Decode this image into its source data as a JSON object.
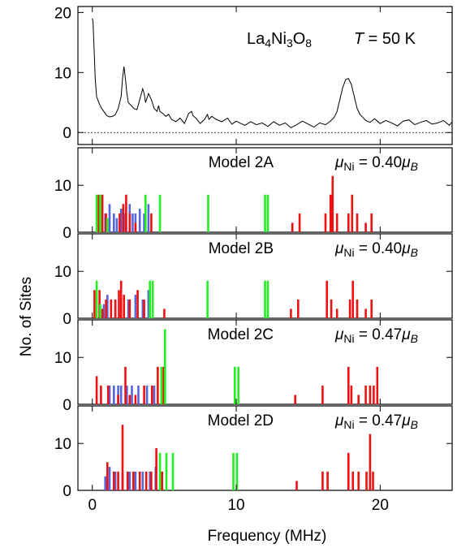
{
  "chart_data": {
    "type": "bar",
    "xlabel": "Frequency (MHz)",
    "ylabel": "No. of Sites",
    "xlim": [
      -1,
      25
    ],
    "xticks": [
      0,
      10,
      20
    ],
    "colors": {
      "red": "#ee1111",
      "green": "#22ee22",
      "blue": "#5566dd"
    },
    "top": {
      "type": "line",
      "label_sample": "La4Ni3O8",
      "label_temp": "T = 50 K",
      "ylim": [
        -2,
        21
      ],
      "yticks": [
        0,
        10,
        20
      ],
      "baseline": 0,
      "x": [
        0.0,
        0.05,
        0.12,
        0.2,
        0.3,
        0.45,
        0.6,
        0.8,
        1.0,
        1.2,
        1.4,
        1.6,
        1.8,
        2.0,
        2.1,
        2.2,
        2.3,
        2.4,
        2.5,
        2.7,
        2.9,
        3.1,
        3.3,
        3.5,
        3.6,
        3.7,
        3.9,
        4.1,
        4.3,
        4.5,
        4.6,
        4.7,
        4.9,
        5.1,
        5.3,
        5.5,
        5.8,
        6.1,
        6.4,
        6.7,
        6.9,
        7.0,
        7.2,
        7.5,
        7.8,
        8.0,
        8.1,
        8.3,
        8.6,
        9.0,
        9.4,
        9.7,
        10.0,
        10.3,
        10.6,
        11.0,
        11.4,
        11.8,
        12.2,
        12.6,
        13.0,
        13.4,
        13.8,
        14.2,
        14.6,
        15.0,
        15.4,
        15.8,
        16.2,
        16.5,
        16.8,
        17.0,
        17.2,
        17.4,
        17.6,
        17.8,
        18.0,
        18.2,
        18.4,
        18.6,
        18.8,
        19.0,
        19.3,
        19.6,
        20.0,
        20.4,
        20.8,
        21.2,
        21.6,
        22.0,
        22.4,
        22.8,
        23.2,
        23.6,
        24.0,
        24.4,
        24.8,
        25.0
      ],
      "y": [
        19,
        18.5,
        14,
        9,
        6,
        5,
        4.2,
        3.5,
        2.8,
        2.6,
        2.7,
        3.0,
        4.0,
        6,
        9,
        11,
        9,
        6.5,
        5,
        4.5,
        4,
        3.8,
        5.5,
        7.3,
        6.5,
        5,
        6.5,
        5.5,
        4,
        3.5,
        4.5,
        3.5,
        3.2,
        2.7,
        3.0,
        2.2,
        1.8,
        2.4,
        1.5,
        3.2,
        3.5,
        2.8,
        2.4,
        1.5,
        2.2,
        3.0,
        2.2,
        2.7,
        2.2,
        1.8,
        2.4,
        1.4,
        1.9,
        1.5,
        1.2,
        1.8,
        1.3,
        1.6,
        1.0,
        1.8,
        1.2,
        1.6,
        0.8,
        1.3,
        1.9,
        1.4,
        0.9,
        1.6,
        1.3,
        1.8,
        2.5,
        3.5,
        5.5,
        7.5,
        8.8,
        9.0,
        8.0,
        6.0,
        4.0,
        3.0,
        2.5,
        2.0,
        1.7,
        2.3,
        1.5,
        2.0,
        1.6,
        1.1,
        1.9,
        2.1,
        1.3,
        1.7,
        2.0,
        1.4,
        1.6,
        2.0,
        1.2,
        1.8
      ]
    },
    "panels": [
      {
        "label_model": "Model 2A",
        "label_mu": "μNi = 0.40μB",
        "ylim": [
          0,
          18
        ],
        "yticks": [
          0,
          10
        ],
        "bars": {
          "blue": [
            [
              0.9,
              4
            ],
            [
              1.2,
              6
            ],
            [
              1.5,
              4
            ],
            [
              1.7,
              3
            ],
            [
              2.0,
              5
            ],
            [
              2.3,
              4
            ],
            [
              2.6,
              6
            ],
            [
              2.8,
              4
            ],
            [
              3.0,
              4
            ],
            [
              3.3,
              5
            ],
            [
              3.6,
              4
            ],
            [
              3.9,
              6
            ]
          ],
          "green": [
            [
              0.3,
              8
            ],
            [
              0.55,
              8
            ],
            [
              1.05,
              3
            ],
            [
              3.7,
              8
            ],
            [
              4.7,
              8
            ],
            [
              8.05,
              8
            ],
            [
              12.0,
              8
            ],
            [
              12.2,
              8
            ]
          ],
          "red": [
            [
              0.45,
              8
            ],
            [
              0.7,
              8
            ],
            [
              0.95,
              4
            ],
            [
              1.9,
              4
            ],
            [
              2.15,
              6
            ],
            [
              2.35,
              8
            ],
            [
              2.6,
              4
            ],
            [
              3.0,
              2
            ],
            [
              4.1,
              4
            ],
            [
              13.9,
              2
            ],
            [
              14.4,
              4
            ],
            [
              16.2,
              4
            ],
            [
              16.55,
              8
            ],
            [
              16.7,
              12
            ],
            [
              17.0,
              4
            ],
            [
              17.8,
              4
            ],
            [
              18.05,
              8
            ],
            [
              18.4,
              4
            ],
            [
              19.0,
              2
            ],
            [
              19.4,
              4
            ]
          ]
        }
      },
      {
        "label_model": "Model 2B",
        "label_mu": "μNi = 0.40μB",
        "ylim": [
          0,
          18
        ],
        "yticks": [
          0,
          10
        ],
        "bars": {
          "blue": [
            [
              0.8,
              3
            ],
            [
              1.05,
              5
            ],
            [
              1.3,
              4
            ],
            [
              1.6,
              3
            ],
            [
              2.0,
              4
            ],
            [
              2.5,
              4
            ],
            [
              3.0,
              5
            ],
            [
              3.5,
              4
            ],
            [
              3.9,
              6
            ]
          ],
          "green": [
            [
              0.3,
              8
            ],
            [
              0.55,
              3
            ],
            [
              4.0,
              8
            ],
            [
              4.2,
              8
            ],
            [
              8.0,
              8
            ],
            [
              12.0,
              8
            ],
            [
              12.2,
              8
            ]
          ],
          "red": [
            [
              0.15,
              6
            ],
            [
              0.5,
              6
            ],
            [
              0.7,
              2
            ],
            [
              0.95,
              4
            ],
            [
              1.3,
              4
            ],
            [
              1.6,
              4
            ],
            [
              1.85,
              6
            ],
            [
              2.0,
              8
            ],
            [
              2.2,
              5
            ],
            [
              2.6,
              4
            ],
            [
              3.15,
              6
            ],
            [
              3.6,
              4
            ],
            [
              5.0,
              2
            ],
            [
              13.8,
              2
            ],
            [
              14.3,
              4
            ],
            [
              16.3,
              8
            ],
            [
              16.6,
              4
            ],
            [
              17.0,
              2
            ],
            [
              17.9,
              4
            ],
            [
              18.1,
              8
            ],
            [
              18.4,
              4
            ],
            [
              19.0,
              2
            ],
            [
              19.4,
              4
            ]
          ]
        }
      },
      {
        "label_model": "Model 2C",
        "label_mu": "μNi = 0.47μB",
        "ylim": [
          0,
          18
        ],
        "yticks": [
          0,
          10
        ],
        "bars": {
          "blue": [
            [
              1.2,
              4
            ],
            [
              1.5,
              4
            ],
            [
              1.8,
              4
            ],
            [
              2.0,
              4
            ],
            [
              2.4,
              4
            ],
            [
              2.75,
              4
            ],
            [
              3.2,
              4
            ],
            [
              3.8,
              4
            ],
            [
              4.3,
              4
            ]
          ],
          "green": [
            [
              4.8,
              8
            ],
            [
              5.05,
              16
            ],
            [
              9.9,
              8
            ],
            [
              10.15,
              8
            ]
          ],
          "red": [
            [
              0.3,
              6
            ],
            [
              0.6,
              4
            ],
            [
              1.1,
              4
            ],
            [
              1.8,
              2
            ],
            [
              2.3,
              8
            ],
            [
              2.6,
              2
            ],
            [
              3.0,
              2
            ],
            [
              3.6,
              4
            ],
            [
              4.15,
              4
            ],
            [
              4.55,
              8
            ],
            [
              4.95,
              8
            ],
            [
              14.1,
              2
            ],
            [
              16.0,
              4
            ],
            [
              17.8,
              8
            ],
            [
              18.0,
              4
            ],
            [
              18.5,
              2
            ],
            [
              19.0,
              4
            ],
            [
              19.3,
              4
            ],
            [
              19.55,
              4
            ],
            [
              19.8,
              8
            ]
          ]
        }
      },
      {
        "label_model": "Model 2D",
        "label_mu": "μNi = 0.47μB",
        "ylim": [
          0,
          18
        ],
        "yticks": [
          0,
          10
        ],
        "bars": {
          "blue": [
            [
              0.9,
              3
            ],
            [
              1.2,
              5
            ],
            [
              1.6,
              4
            ],
            [
              2.1,
              4
            ],
            [
              2.6,
              4
            ],
            [
              3.0,
              4
            ],
            [
              3.5,
              4
            ],
            [
              4.0,
              4
            ],
            [
              4.4,
              5
            ]
          ],
          "green": [
            [
              4.7,
              8
            ],
            [
              5.15,
              8
            ],
            [
              5.6,
              8
            ],
            [
              9.8,
              8
            ],
            [
              10.05,
              8
            ]
          ],
          "red": [
            [
              1.05,
              6
            ],
            [
              1.5,
              4
            ],
            [
              1.8,
              4
            ],
            [
              2.1,
              14
            ],
            [
              2.45,
              4
            ],
            [
              2.85,
              4
            ],
            [
              3.3,
              4
            ],
            [
              3.75,
              4
            ],
            [
              4.1,
              4
            ],
            [
              4.45,
              9
            ],
            [
              4.85,
              4
            ],
            [
              14.2,
              2
            ],
            [
              16.0,
              4
            ],
            [
              16.35,
              4
            ],
            [
              17.8,
              8
            ],
            [
              18.1,
              4
            ],
            [
              18.5,
              4
            ],
            [
              19.05,
              4
            ],
            [
              19.3,
              12
            ],
            [
              19.5,
              4
            ]
          ]
        }
      }
    ]
  }
}
